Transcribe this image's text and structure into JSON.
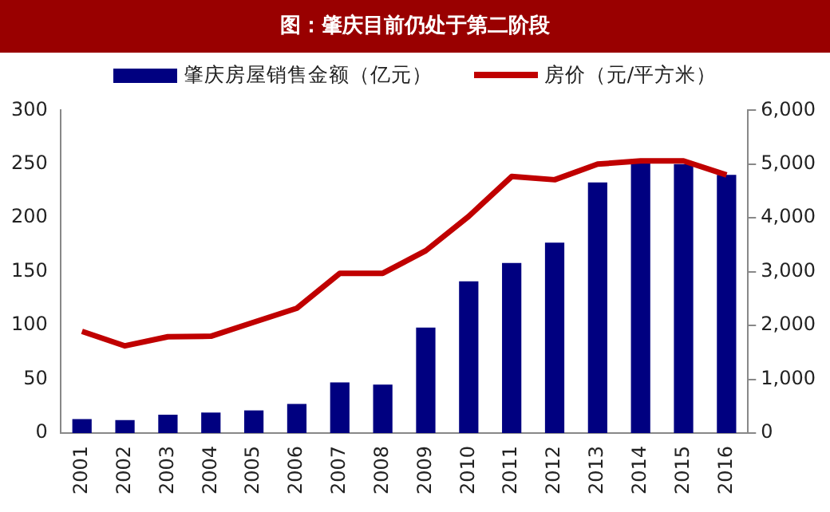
{
  "chart_data": {
    "type": "bar",
    "title": "图：肇庆目前仍处于第二阶段",
    "categories": [
      "2001",
      "2002",
      "2003",
      "2004",
      "2005",
      "2006",
      "2007",
      "2008",
      "2009",
      "2010",
      "2011",
      "2012",
      "2013",
      "2014",
      "2015",
      "2016"
    ],
    "series": [
      {
        "name": "肇庆房屋销售金额（亿元）",
        "color": "#000080",
        "values": [
          13,
          12,
          17,
          19,
          21,
          27,
          47,
          45,
          98,
          141,
          158,
          177,
          233,
          252,
          250,
          240
        ]
      },
      {
        "name": "房价（元/平方米）",
        "type": "line",
        "axis": "y2",
        "color": "#c00000",
        "values": [
          1890,
          1620,
          1790,
          1800,
          2060,
          2320,
          2970,
          2970,
          3390,
          4030,
          4770,
          4710,
          5000,
          5060,
          5060,
          4800
        ]
      }
    ],
    "ylim": [
      0,
      300
    ],
    "yticks": [
      0,
      50,
      100,
      150,
      200,
      250,
      300
    ],
    "y2lim": [
      0,
      6000
    ],
    "y2ticks": [
      {
        "value": 0,
        "label": "0"
      },
      {
        "value": 1000,
        "label": "1,000"
      },
      {
        "value": 2000,
        "label": "2,000"
      },
      {
        "value": 3000,
        "label": "3,000"
      },
      {
        "value": 4000,
        "label": "4,000"
      },
      {
        "value": 5000,
        "label": "5,000"
      },
      {
        "value": 6000,
        "label": "6,000"
      }
    ],
    "grid": false,
    "legend": "top",
    "marker": "none"
  }
}
